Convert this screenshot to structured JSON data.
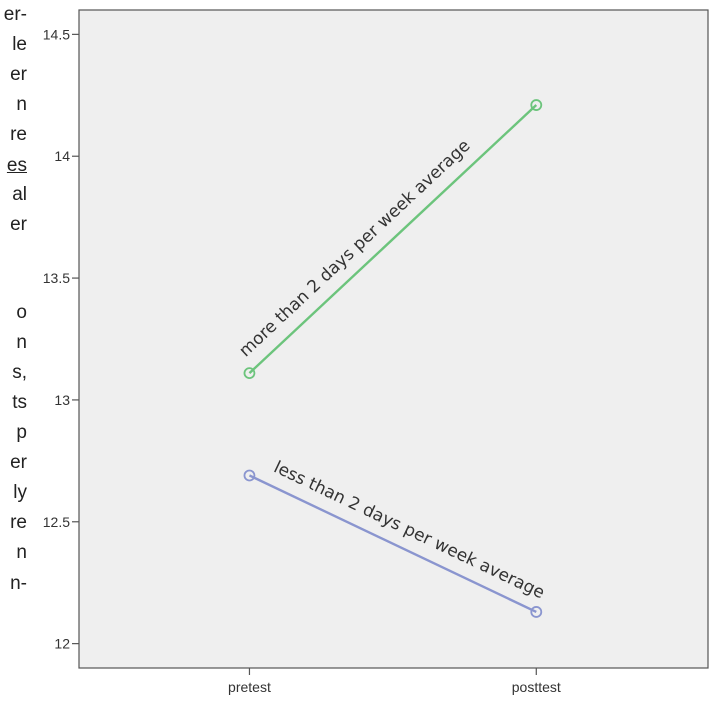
{
  "left_text_fragments": [
    {
      "text": "er-",
      "underline": false
    },
    {
      "text": "le",
      "underline": false
    },
    {
      "text": "er",
      "underline": false
    },
    {
      "text": "n",
      "underline": false
    },
    {
      "text": "re",
      "underline": false
    },
    {
      "text": "es",
      "underline": true
    },
    {
      "text": "al",
      "underline": false
    },
    {
      "text": "er",
      "underline": false
    },
    {
      "text": "o",
      "underline": false
    },
    {
      "text": "n",
      "underline": false
    },
    {
      "text": "s,",
      "underline": false
    },
    {
      "text": "ts",
      "underline": false
    },
    {
      "text": "p",
      "underline": false
    },
    {
      "text": "er",
      "underline": false
    },
    {
      "text": "ly",
      "underline": false
    },
    {
      "text": "re",
      "underline": false
    },
    {
      "text": "n",
      "underline": false
    },
    {
      "text": "n-",
      "underline": false
    }
  ],
  "chart_data": {
    "type": "line",
    "categories": [
      "pretest",
      "posttest"
    ],
    "ylim": [
      11.9,
      14.6
    ],
    "yticks": [
      12,
      12.5,
      13,
      13.5,
      14,
      14.5
    ],
    "ytick_labels": [
      "12",
      "12.5",
      "13",
      "13.5",
      "14",
      "14.5"
    ],
    "grid": false,
    "plot_background": "#efefef",
    "series": [
      {
        "name": "more than 2 days per week average",
        "values": [
          13.11,
          14.21
        ],
        "color": "#6cc47c"
      },
      {
        "name": "less than 2 days per week average",
        "values": [
          12.69,
          12.13
        ],
        "color": "#8a95cf"
      }
    ]
  }
}
